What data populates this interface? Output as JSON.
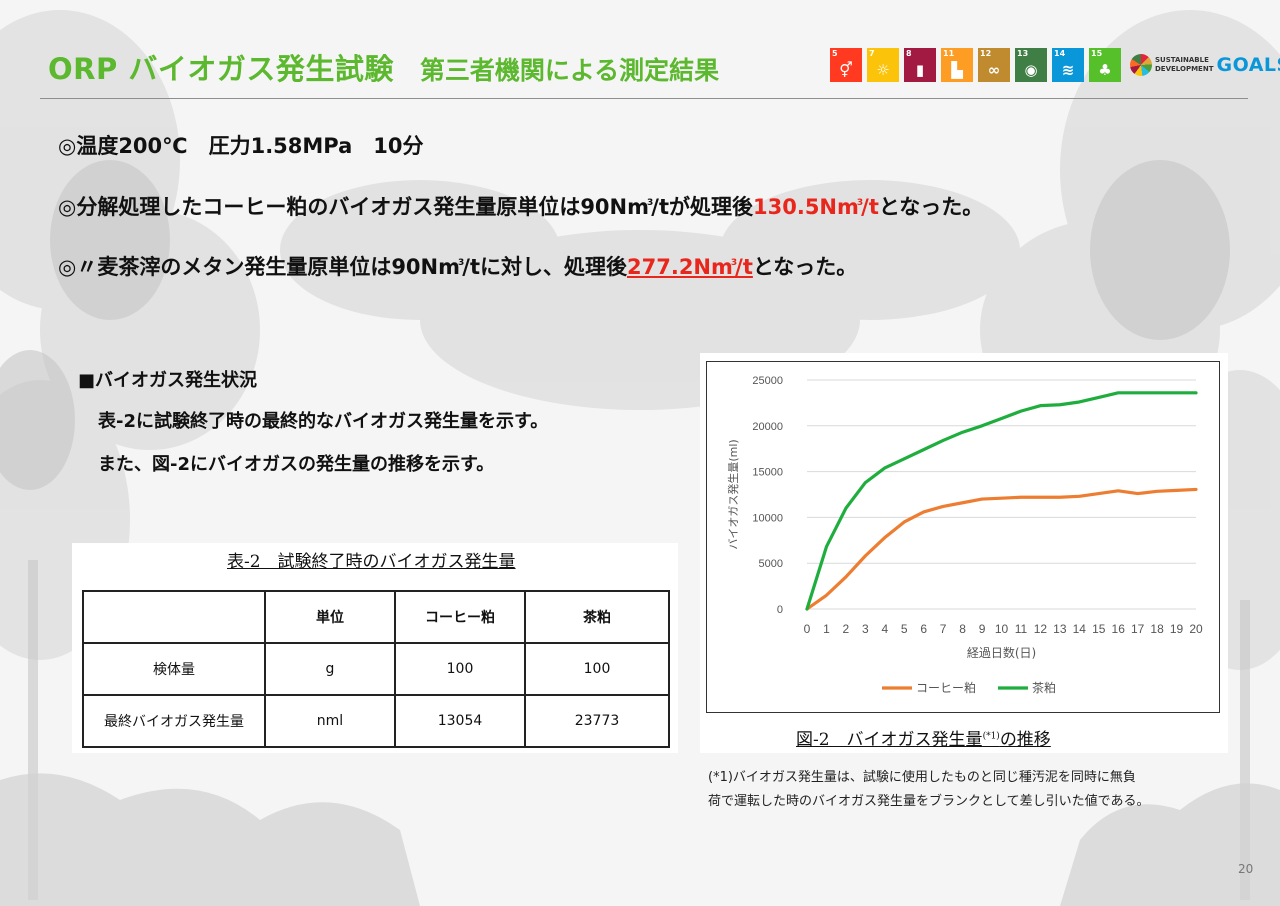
{
  "header": {
    "title_main": "ORP バイオガス発生試験",
    "title_sub": "第三者機関による測定結果"
  },
  "sdgs": {
    "tiles": [
      {
        "num": "5",
        "color": "#ff3a21",
        "glyph": "⚥"
      },
      {
        "num": "7",
        "color": "#fcc30b",
        "glyph": "☼"
      },
      {
        "num": "8",
        "color": "#a21942",
        "glyph": "▮"
      },
      {
        "num": "11",
        "color": "#fd9d24",
        "glyph": "▙"
      },
      {
        "num": "12",
        "color": "#bf8b2e",
        "glyph": "∞"
      },
      {
        "num": "13",
        "color": "#3f7e44",
        "glyph": "◉"
      },
      {
        "num": "14",
        "color": "#0a97d9",
        "glyph": "≋"
      },
      {
        "num": "15",
        "color": "#56c02b",
        "glyph": "♣"
      }
    ],
    "label_line1": "SUSTAINABLE",
    "label_line2": "DEVELOPMENT",
    "label_goals": "GOALS"
  },
  "bullets": {
    "b1": "◎温度200℃　圧力1.58MPa　10分",
    "b2_pre": "◎分解処理したコーヒー粕のバイオガス発生量原単位は90Nm",
    "b2_mid": "/tが処理後",
    "b2_hl": "130.5Nm",
    "b2_hl_unit": "/t",
    "b2_post": "となった。",
    "b3_pre": "◎〃麦茶滓のメタン発生量原単位は90Nm",
    "b3_mid": "/tに対し、処理後",
    "b3_hl": "277.2Nm",
    "b3_hl_unit": "/t",
    "b3_post": "となった。",
    "sup": "3"
  },
  "status": {
    "heading": "■バイオガス発生状況",
    "line1": "表-2に試験終了時の最終的なバイオガス発生量を示す。",
    "line2": "また、図-2にバイオガスの発生量の推移を示す。"
  },
  "table": {
    "caption": "表-2　試験終了時のバイオガス発生量",
    "headers": [
      "",
      "単位",
      "コーヒー粕",
      "茶粕"
    ],
    "rows": [
      [
        "検体量",
        "g",
        "100",
        "100"
      ],
      [
        "最終バイオガス発生量",
        "nml",
        "13054",
        "23773"
      ]
    ]
  },
  "chart_caption": {
    "pre": "図-2　バイオガス発生量",
    "sup": "(*1)",
    "post": "の推移"
  },
  "chart_data": {
    "type": "line",
    "x": [
      0,
      1,
      2,
      3,
      4,
      5,
      6,
      7,
      8,
      9,
      10,
      11,
      12,
      13,
      14,
      15,
      16,
      17,
      18,
      19,
      20
    ],
    "xlabel": "経過日数(日)",
    "ylabel": "バイオガス発生量(ml)",
    "xlim": [
      0,
      20
    ],
    "ylim": [
      0,
      25000
    ],
    "yticks": [
      0,
      5000,
      10000,
      15000,
      20000,
      25000
    ],
    "legend_position": "bottom",
    "grid": "horizontal",
    "series": [
      {
        "name": "コーヒー粕",
        "color": "#ed7d31",
        "values": [
          0,
          1500,
          3500,
          5800,
          7800,
          9500,
          10600,
          11200,
          11600,
          12000,
          12100,
          12200,
          12200,
          12200,
          12300,
          12600,
          12900,
          12600,
          12850,
          12950,
          13050
        ]
      },
      {
        "name": "茶粕",
        "color": "#1fae3e",
        "values": [
          0,
          6800,
          11000,
          13800,
          15400,
          16400,
          17400,
          18400,
          19300,
          20000,
          20800,
          21600,
          22200,
          22300,
          22600,
          23100,
          23600,
          23600,
          23600,
          23600,
          23600
        ]
      }
    ]
  },
  "footnote": {
    "line1": "(*1)バイオガス発生量は、試験に使用したものと同じ種汚泥を同時に無負",
    "line2": "荷で運転した時のバイオガス発生量をブランクとして差し引いた値である。"
  },
  "page_number": "20"
}
